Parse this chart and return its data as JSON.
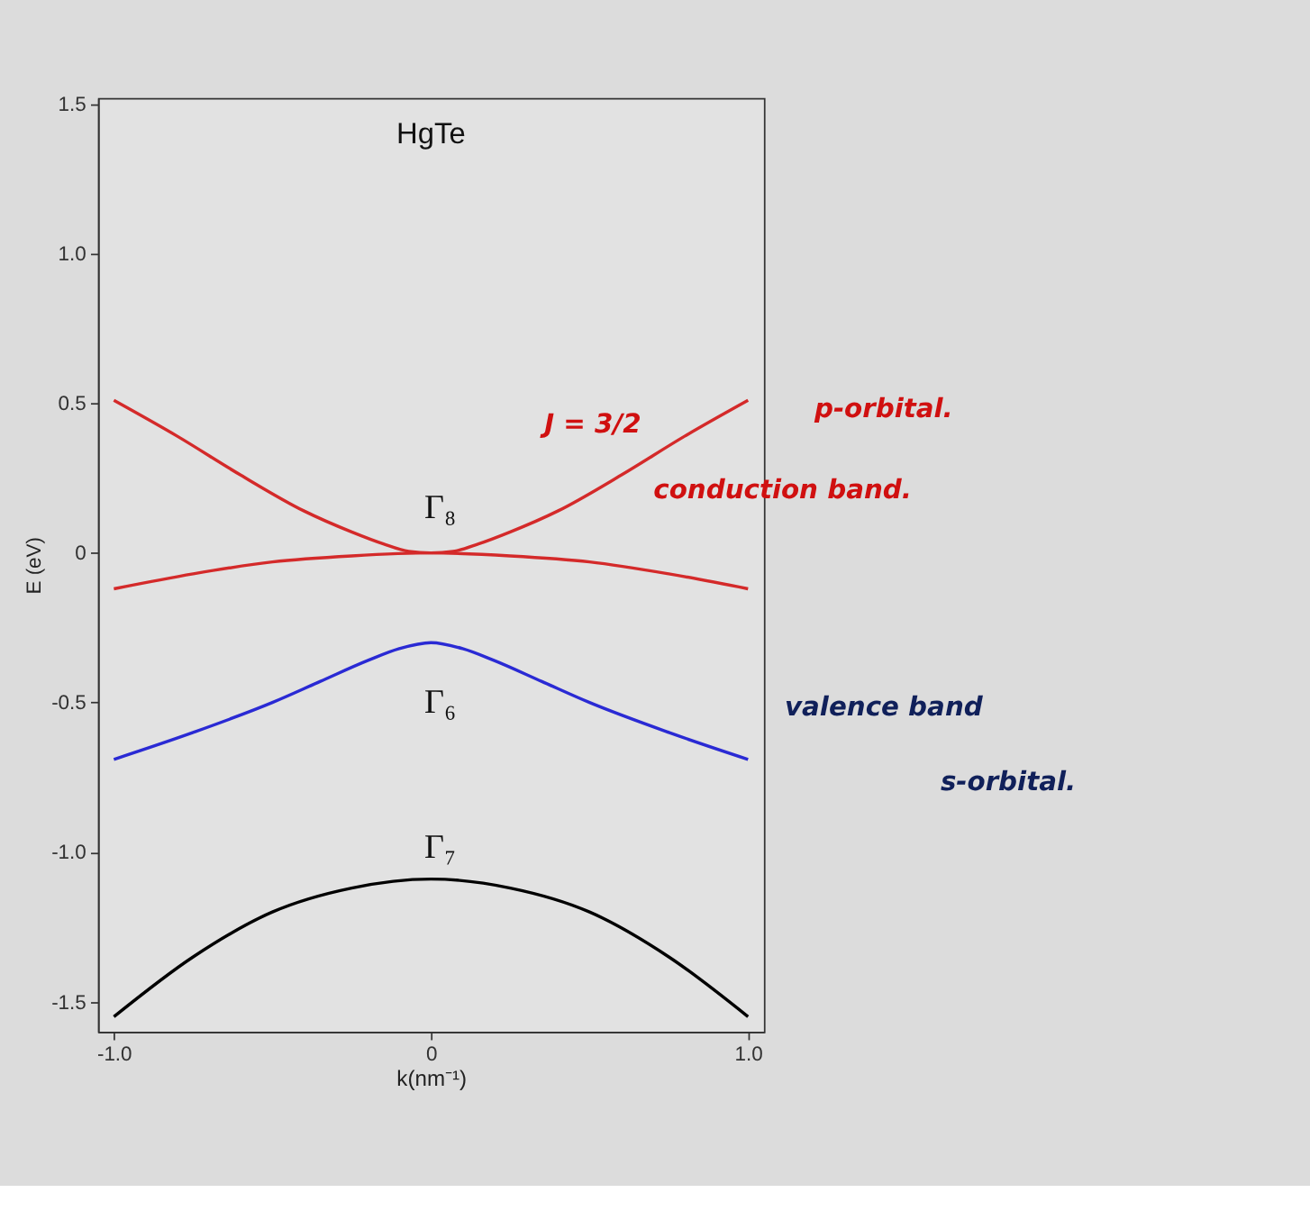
{
  "chart_data": {
    "type": "line",
    "xlabel": "k(nm⁻¹)",
    "ylabel": "E (eV)",
    "xlim": [
      -1.05,
      1.05
    ],
    "ylim": [
      -1.6,
      1.52
    ],
    "xticks": [
      {
        "value": -1,
        "label": "-1.0"
      },
      0,
      {
        "value": 1,
        "label": "1.0"
      }
    ],
    "yticks": [
      {
        "value": 1.5,
        "label": "1.5"
      },
      {
        "value": 1,
        "label": "1.0"
      },
      0.5,
      0,
      -0.5,
      {
        "value": -1,
        "label": "-1.0"
      },
      -1.5
    ],
    "grid": false,
    "line_style": "solid",
    "marker": "none",
    "series": [
      {
        "color": "#d42a2a",
        "x": [
          -1,
          -0.8,
          -0.6,
          -0.4,
          -0.25,
          -0.15,
          -0.07,
          0,
          0.07,
          0.15,
          0.25,
          0.4,
          0.6,
          0.8,
          1
        ],
        "values": [
          0.51,
          0.39,
          0.26,
          0.14,
          0.07,
          0.03,
          0.005,
          0,
          0.005,
          0.03,
          0.07,
          0.14,
          0.26,
          0.39,
          0.51
        ]
      },
      {
        "color": "#d42a2a",
        "x": [
          -1,
          -0.75,
          -0.5,
          -0.25,
          0,
          0.25,
          0.5,
          0.75,
          1
        ],
        "values": [
          -0.12,
          -0.07,
          -0.03,
          -0.01,
          0,
          -0.01,
          -0.03,
          -0.07,
          -0.12
        ]
      },
      {
        "color": "#2a2ad4",
        "x": [
          -1,
          -0.75,
          -0.5,
          -0.35,
          -0.2,
          -0.1,
          0,
          0.1,
          0.2,
          0.35,
          0.5,
          0.75,
          1
        ],
        "values": [
          -0.69,
          -0.6,
          -0.5,
          -0.43,
          -0.36,
          -0.32,
          -0.3,
          -0.32,
          -0.36,
          -0.43,
          -0.5,
          -0.6,
          -0.69
        ]
      },
      {
        "color": "#000000",
        "x": [
          -1,
          -0.75,
          -0.5,
          -0.25,
          0,
          0.25,
          0.5,
          0.75,
          1
        ],
        "values": [
          -1.55,
          -1.35,
          -1.2,
          -1.12,
          -1.09,
          -1.12,
          -1.2,
          -1.35,
          -1.55
        ]
      }
    ],
    "annotations": [
      "HgTe",
      "Γ₈",
      "Γ₆",
      "Γ₇",
      "J = 3/2",
      "p-orbital.",
      "conduction band.",
      "valence band",
      "s-orbital."
    ]
  }
}
